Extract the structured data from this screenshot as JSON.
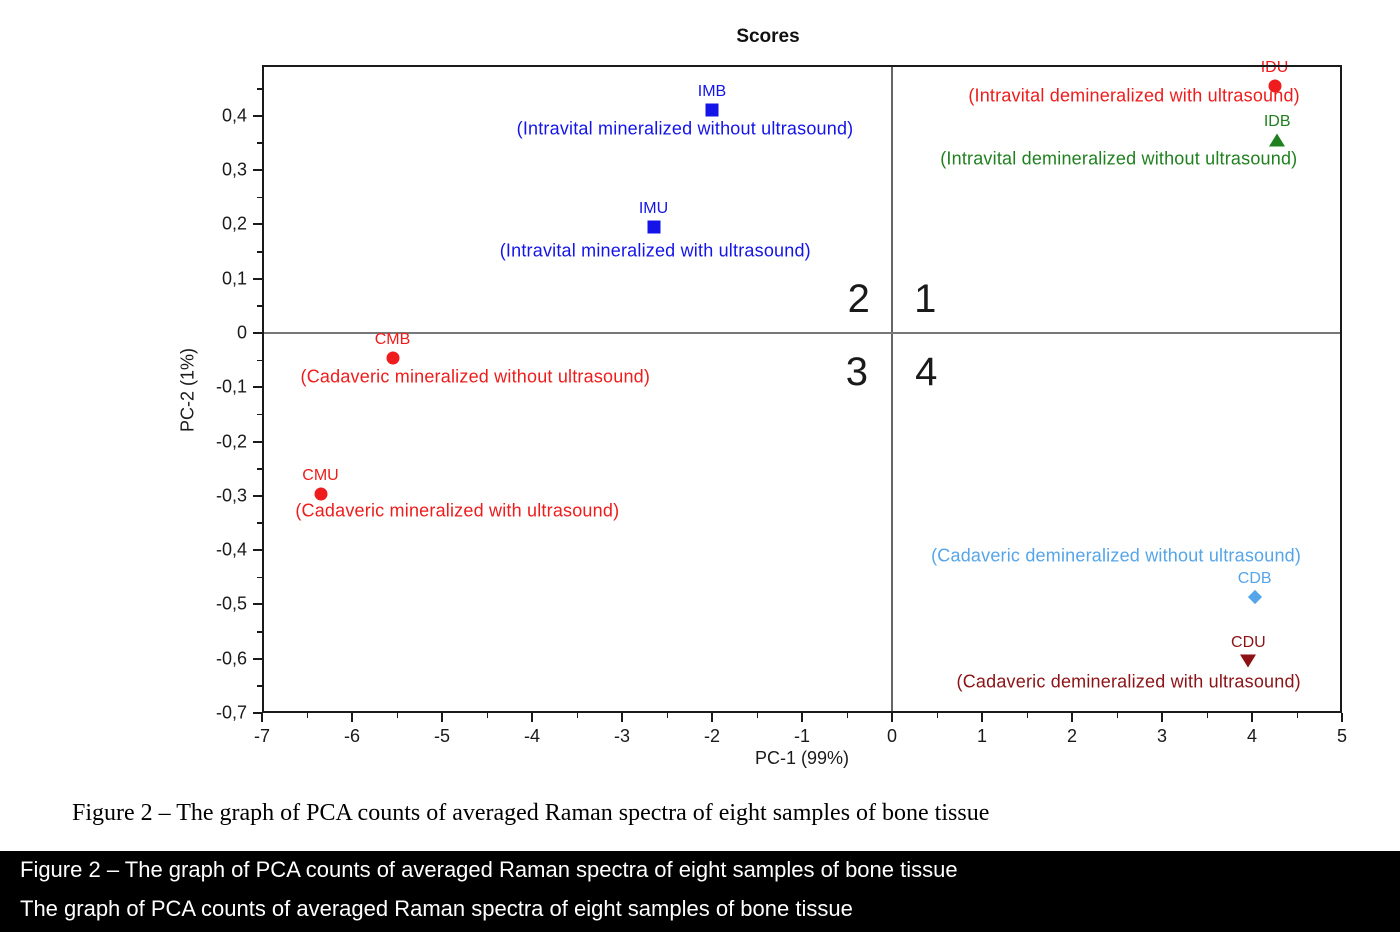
{
  "figure_caption": "Figure 2 – The graph of PCA counts of averaged Raman spectra of eight samples of bone tissue",
  "overlay_bar": {
    "line1": "Figure 2 – The graph of PCA counts of averaged Raman spectra of eight samples of bone tissue",
    "line2": "The graph of PCA counts of averaged Raman spectra of eight samples of bone tissue"
  },
  "colors": {
    "blue": "#1414e8",
    "red": "#ee1c1c",
    "green": "#208020",
    "light_blue": "#55a5e8",
    "dark_red": "#8c1216",
    "axis_line": "#1a1a1a",
    "zero_line": "#6e6e6e"
  },
  "chart_data": {
    "type": "scatter",
    "title": "Scores",
    "xlabel": "PC-1 (99%)",
    "ylabel": "PC-2 (1%)",
    "xlim": [
      -7,
      5
    ],
    "ylim": [
      -0.7,
      0.4935
    ],
    "grid": false,
    "zero_lines": true,
    "x_major_ticks": [
      -7,
      -6,
      -5,
      -4,
      -3,
      -2,
      -1,
      0,
      1,
      2,
      3,
      4,
      5
    ],
    "x_tick_labels": [
      "-7",
      "-6",
      "-5",
      "-4",
      "-3",
      "-2",
      "-1",
      "0",
      "1",
      "2",
      "3",
      "4",
      "5"
    ],
    "x_minor_ticks": [
      -6.5,
      -5.5,
      -4.5,
      -3.5,
      -2.5,
      -1.5,
      -0.5,
      0.5,
      1.5,
      2.5,
      3.5,
      4.5
    ],
    "y_major_ticks": [
      0.4,
      0.3,
      0.2,
      0.1,
      0,
      -0.1,
      -0.2,
      -0.3,
      -0.4,
      -0.5,
      -0.6,
      -0.7
    ],
    "y_tick_labels": [
      "0,4",
      "0,3",
      "0,2",
      "0,1",
      "0",
      "-0,1",
      "-0,2",
      "-0,3",
      "-0,4",
      "-0,5",
      "-0,6",
      "-0,7"
    ],
    "y_minor_ticks": [
      0.45,
      0.35,
      0.25,
      0.15,
      0.05,
      -0.05,
      -0.15,
      -0.25,
      -0.35,
      -0.45,
      -0.55,
      -0.65
    ],
    "quadrant_labels": [
      {
        "text": "1",
        "x": 0.37,
        "y": 0.063
      },
      {
        "text": "2",
        "x": -0.37,
        "y": 0.063
      },
      {
        "text": "3",
        "x": -0.39,
        "y": -0.072
      },
      {
        "text": "4",
        "x": 0.38,
        "y": -0.072
      }
    ],
    "points": [
      {
        "code": "IMB",
        "x": -2.0,
        "y": 0.41,
        "marker": "square",
        "color": "#1414e8",
        "annotation": "(Intravital mineralized without ultrasound)",
        "ann_x": -2.3,
        "ann_y": 0.376
      },
      {
        "code": "IMU",
        "x": -2.65,
        "y": 0.195,
        "marker": "square",
        "color": "#1414e8",
        "annotation": "(Intravital mineralized with ultrasound)",
        "ann_x": -2.63,
        "ann_y": 0.151
      },
      {
        "code": "IDU",
        "x": 4.25,
        "y": 0.455,
        "marker": "circle",
        "color": "#ee1c1c",
        "annotation": "(Intravital demineralized with ultrasound)",
        "ann_x": 2.69,
        "ann_y": 0.436
      },
      {
        "code": "IDB",
        "x": 4.28,
        "y": 0.355,
        "marker": "triangle-up",
        "color": "#208020",
        "annotation": "(Intravital demineralized without ultrasound)",
        "ann_x": 2.52,
        "ann_y": 0.32
      },
      {
        "code": "CMB",
        "x": -5.55,
        "y": -0.046,
        "marker": "circle",
        "color": "#ee1c1c",
        "annotation": "(Cadaveric mineralized without ultrasound)",
        "ann_x": -4.63,
        "ann_y": -0.081
      },
      {
        "code": "CMU",
        "x": -6.35,
        "y": -0.296,
        "marker": "circle",
        "color": "#ee1c1c",
        "annotation": "(Cadaveric mineralized with ultrasound)",
        "ann_x": -4.83,
        "ann_y": -0.328
      },
      {
        "code": "CDB",
        "x": 4.03,
        "y": -0.486,
        "marker": "diamond",
        "color": "#55a5e8",
        "annotation": "(Cadaveric demineralized without ultrasound)",
        "ann_x": 2.49,
        "ann_y": -0.411
      },
      {
        "code": "CDU",
        "x": 3.96,
        "y": -0.605,
        "marker": "triangle-down",
        "color": "#8c1216",
        "annotation": "(Cadaveric demineralized with ultrasound)",
        "ann_x": 2.63,
        "ann_y": -0.643
      }
    ]
  }
}
